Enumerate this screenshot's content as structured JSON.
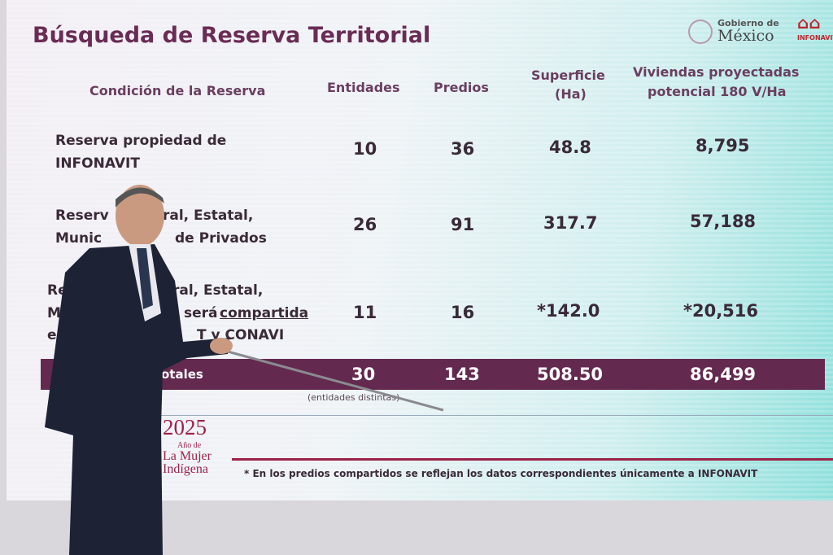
{
  "slide": {
    "title": "Búsqueda de Reserva Territorial",
    "logos": {
      "gobierno_line1": "Gobierno de",
      "gobierno_line2": "México",
      "infonavit": "INFONAVIT"
    },
    "headers": [
      "Condición de la Reserva",
      "Entidades",
      "Predios",
      "Superficie",
      "(Ha)",
      "Viviendas proyectadas",
      "potencial 180 V/Ha"
    ],
    "rows": [
      {
        "label": [
          "Reserva propiedad de",
          "INFONAVIT"
        ],
        "entidades": "10",
        "predios": "36",
        "superficie": "48.8",
        "viviendas": "8,795"
      },
      {
        "label": [
          "Reserv",
          "ral, Estatal,",
          "Munic",
          "de Privados"
        ],
        "entidades": "26",
        "predios": "91",
        "superficie": "317.7",
        "viviendas": "57,188"
      },
      {
        "label": [
          "Re",
          "ral, Estatal,",
          "Mo",
          "será",
          "compartida",
          "en",
          "T y CONAVI"
        ],
        "entidades": "11",
        "predios": "16",
        "superficie": "*142.0",
        "viviendas": "*20,516"
      }
    ],
    "totals": {
      "label": "otales",
      "entidades": "30",
      "predios": "143",
      "superficie": "508.50",
      "viviendas": "86,499",
      "note": "(entidades distintas)"
    },
    "year_logo": {
      "year": "2025",
      "line1": "Año de",
      "line2": "La Mujer",
      "line3": "Indígena"
    },
    "footnote": "* En los predios compartidos se reflejan los datos correspondientes únicamente a INFONAVIT",
    "colors": {
      "accent": "#63294f",
      "rule": "#9b2247"
    }
  }
}
